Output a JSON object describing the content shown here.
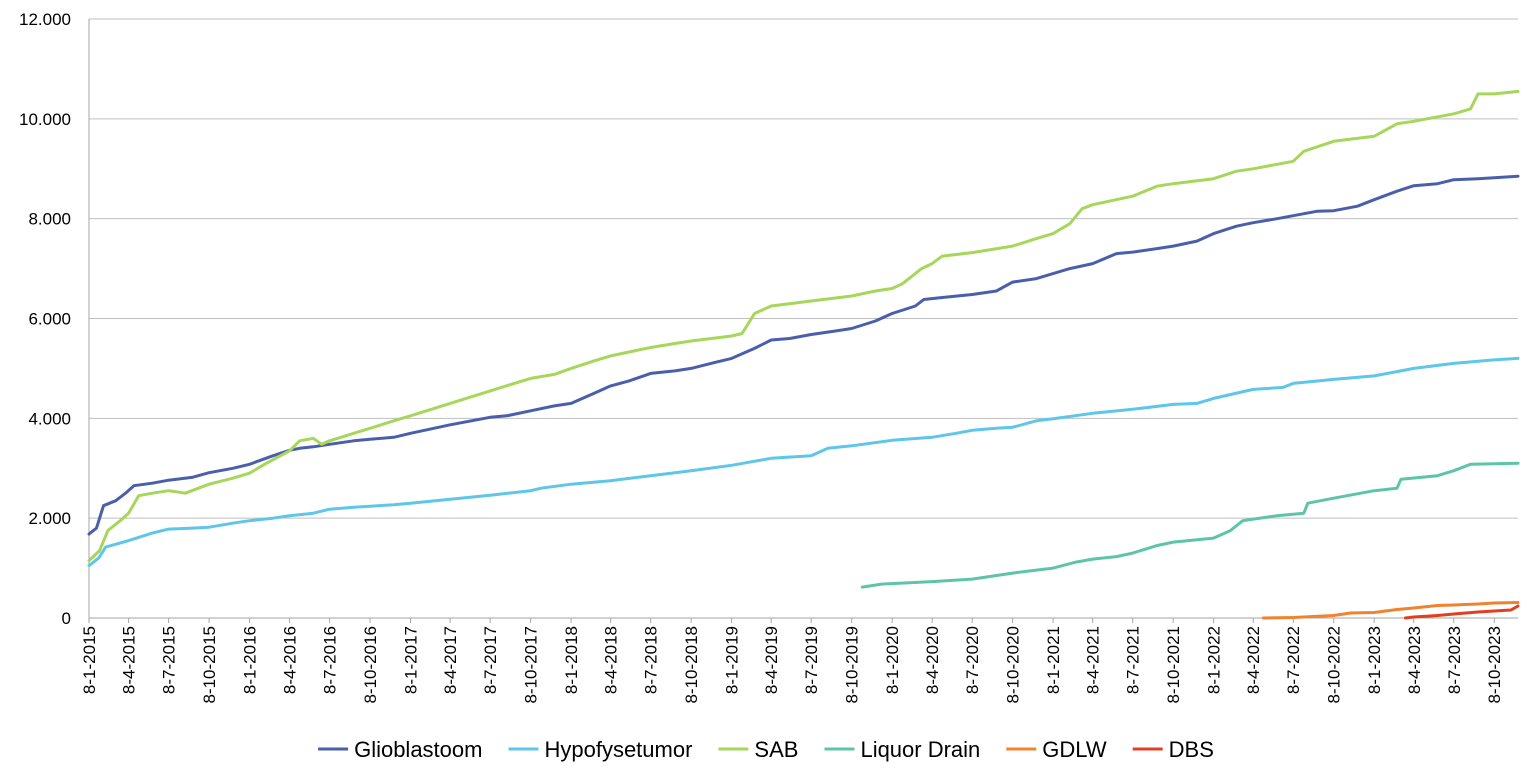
{
  "chart_data": {
    "type": "line",
    "title": "",
    "xlabel": "",
    "ylabel": "",
    "ylim": [
      0,
      12000
    ],
    "yticks": [
      "0",
      "2.000",
      "4.000",
      "6.000",
      "8.000",
      "10.000",
      "12.000"
    ],
    "x_tick_labels": [
      "8-1-2015",
      "8-4-2015",
      "8-7-2015",
      "8-10-2015",
      "8-1-2016",
      "8-4-2016",
      "8-7-2016",
      "8-10-2016",
      "8-1-2017",
      "8-4-2017",
      "8-7-2017",
      "8-10-2017",
      "8-1-2018",
      "8-4-2018",
      "8-7-2018",
      "8-10-2018",
      "8-1-2019",
      "8-4-2019",
      "8-7-2019",
      "8-10-2019",
      "8-1-2020",
      "8-4-2020",
      "8-7-2020",
      "8-10-2020",
      "8-1-2021",
      "8-4-2021",
      "8-7-2021",
      "8-10-2021",
      "8-1-2022",
      "8-4-2022",
      "8-7-2022",
      "8-10-2022",
      "8-1-2023",
      "8-4-2023",
      "8-7-2023",
      "8-10-2023"
    ],
    "x_range": [
      "2015-01-08",
      "2023-12-01"
    ],
    "grid": "horizontal",
    "legend_position": "bottom",
    "series": [
      {
        "name": "Glioblastoom",
        "color": "#4a5fac",
        "points": [
          [
            "2015-01-08",
            1680
          ],
          [
            "2015-01-25",
            1800
          ],
          [
            "2015-02-10",
            2250
          ],
          [
            "2015-03-10",
            2350
          ],
          [
            "2015-04-01",
            2500
          ],
          [
            "2015-04-20",
            2650
          ],
          [
            "2015-06-01",
            2700
          ],
          [
            "2015-07-08",
            2760
          ],
          [
            "2015-09-01",
            2820
          ],
          [
            "2015-10-08",
            2910
          ],
          [
            "2015-12-01",
            3000
          ],
          [
            "2016-01-08",
            3080
          ],
          [
            "2016-03-01",
            3250
          ],
          [
            "2016-04-08",
            3360
          ],
          [
            "2016-05-01",
            3400
          ],
          [
            "2016-06-01",
            3430
          ],
          [
            "2016-07-08",
            3480
          ],
          [
            "2016-09-01",
            3550
          ],
          [
            "2016-10-08",
            3580
          ],
          [
            "2016-12-01",
            3620
          ],
          [
            "2017-01-08",
            3700
          ],
          [
            "2017-04-08",
            3870
          ],
          [
            "2017-07-08",
            4020
          ],
          [
            "2017-08-15",
            4050
          ],
          [
            "2017-10-08",
            4150
          ],
          [
            "2017-12-01",
            4250
          ],
          [
            "2018-01-08",
            4300
          ],
          [
            "2018-03-01",
            4500
          ],
          [
            "2018-04-08",
            4650
          ],
          [
            "2018-05-20",
            4750
          ],
          [
            "2018-07-08",
            4900
          ],
          [
            "2018-09-01",
            4950
          ],
          [
            "2018-10-08",
            5000
          ],
          [
            "2018-12-01",
            5120
          ],
          [
            "2019-01-08",
            5200
          ],
          [
            "2019-03-01",
            5400
          ],
          [
            "2019-04-08",
            5570
          ],
          [
            "2019-05-20",
            5600
          ],
          [
            "2019-07-08",
            5680
          ],
          [
            "2019-09-01",
            5750
          ],
          [
            "2019-10-08",
            5800
          ],
          [
            "2019-12-01",
            5950
          ],
          [
            "2020-01-08",
            6100
          ],
          [
            "2020-03-01",
            6250
          ],
          [
            "2020-03-20",
            6380
          ],
          [
            "2020-05-01",
            6420
          ],
          [
            "2020-07-08",
            6480
          ],
          [
            "2020-09-01",
            6550
          ],
          [
            "2020-10-08",
            6730
          ],
          [
            "2020-12-01",
            6800
          ],
          [
            "2021-01-08",
            6900
          ],
          [
            "2021-02-15",
            7000
          ],
          [
            "2021-04-08",
            7100
          ],
          [
            "2021-06-01",
            7300
          ],
          [
            "2021-07-08",
            7330
          ],
          [
            "2021-09-01",
            7400
          ],
          [
            "2021-10-08",
            7450
          ],
          [
            "2021-12-01",
            7550
          ],
          [
            "2022-01-08",
            7700
          ],
          [
            "2022-03-01",
            7850
          ],
          [
            "2022-04-08",
            7920
          ],
          [
            "2022-06-01",
            8000
          ],
          [
            "2022-07-08",
            8060
          ],
          [
            "2022-09-01",
            8150
          ],
          [
            "2022-10-08",
            8160
          ],
          [
            "2022-12-01",
            8250
          ],
          [
            "2023-01-08",
            8380
          ],
          [
            "2023-03-01",
            8550
          ],
          [
            "2023-04-08",
            8660
          ],
          [
            "2023-06-01",
            8700
          ],
          [
            "2023-07-08",
            8780
          ],
          [
            "2023-09-01",
            8800
          ],
          [
            "2023-10-08",
            8820
          ],
          [
            "2023-12-01",
            8850
          ]
        ]
      },
      {
        "name": "Hypofysetumor",
        "color": "#5ec6e8",
        "points": [
          [
            "2015-01-08",
            1050
          ],
          [
            "2015-01-30",
            1200
          ],
          [
            "2015-02-15",
            1420
          ],
          [
            "2015-04-08",
            1550
          ],
          [
            "2015-06-01",
            1700
          ],
          [
            "2015-07-08",
            1780
          ],
          [
            "2015-09-01",
            1800
          ],
          [
            "2015-10-08",
            1820
          ],
          [
            "2015-12-01",
            1900
          ],
          [
            "2016-01-08",
            1950
          ],
          [
            "2016-03-01",
            2000
          ],
          [
            "2016-04-08",
            2050
          ],
          [
            "2016-06-01",
            2100
          ],
          [
            "2016-07-08",
            2180
          ],
          [
            "2016-09-01",
            2220
          ],
          [
            "2016-10-08",
            2240
          ],
          [
            "2016-12-01",
            2270
          ],
          [
            "2017-01-08",
            2300
          ],
          [
            "2017-07-08",
            2460
          ],
          [
            "2017-10-08",
            2550
          ],
          [
            "2017-11-01",
            2600
          ],
          [
            "2018-01-08",
            2680
          ],
          [
            "2018-04-08",
            2750
          ],
          [
            "2018-07-08",
            2850
          ],
          [
            "2018-10-08",
            2950
          ],
          [
            "2019-01-08",
            3060
          ],
          [
            "2019-04-08",
            3200
          ],
          [
            "2019-07-08",
            3250
          ],
          [
            "2019-08-15",
            3400
          ],
          [
            "2019-10-08",
            3450
          ],
          [
            "2020-01-08",
            3560
          ],
          [
            "2020-04-08",
            3620
          ],
          [
            "2020-06-01",
            3700
          ],
          [
            "2020-07-08",
            3760
          ],
          [
            "2020-09-01",
            3800
          ],
          [
            "2020-10-08",
            3820
          ],
          [
            "2020-12-01",
            3950
          ],
          [
            "2021-01-08",
            3990
          ],
          [
            "2021-04-08",
            4100
          ],
          [
            "2021-07-08",
            4180
          ],
          [
            "2021-10-08",
            4280
          ],
          [
            "2021-12-01",
            4300
          ],
          [
            "2022-01-08",
            4400
          ],
          [
            "2022-04-08",
            4580
          ],
          [
            "2022-06-15",
            4620
          ],
          [
            "2022-07-08",
            4700
          ],
          [
            "2022-10-08",
            4780
          ],
          [
            "2023-01-08",
            4850
          ],
          [
            "2023-04-08",
            5000
          ],
          [
            "2023-07-08",
            5100
          ],
          [
            "2023-10-08",
            5170
          ],
          [
            "2023-12-01",
            5200
          ]
        ]
      },
      {
        "name": "SAB",
        "color": "#a6d65a",
        "points": [
          [
            "2015-01-08",
            1150
          ],
          [
            "2015-02-01",
            1350
          ],
          [
            "2015-02-20",
            1750
          ],
          [
            "2015-03-20",
            1950
          ],
          [
            "2015-04-08",
            2100
          ],
          [
            "2015-05-01",
            2450
          ],
          [
            "2015-06-01",
            2500
          ],
          [
            "2015-07-08",
            2550
          ],
          [
            "2015-08-15",
            2500
          ],
          [
            "2015-10-08",
            2680
          ],
          [
            "2015-12-01",
            2800
          ],
          [
            "2016-01-08",
            2900
          ],
          [
            "2016-02-15",
            3100
          ],
          [
            "2016-04-08",
            3350
          ],
          [
            "2016-05-01",
            3550
          ],
          [
            "2016-06-01",
            3600
          ],
          [
            "2016-06-20",
            3480
          ],
          [
            "2016-07-08",
            3550
          ],
          [
            "2016-09-01",
            3700
          ],
          [
            "2016-10-08",
            3800
          ],
          [
            "2016-12-01",
            3950
          ],
          [
            "2017-01-08",
            4050
          ],
          [
            "2017-04-08",
            4300
          ],
          [
            "2017-07-08",
            4550
          ],
          [
            "2017-10-08",
            4800
          ],
          [
            "2017-12-01",
            4880
          ],
          [
            "2018-01-08",
            5000
          ],
          [
            "2018-03-01",
            5150
          ],
          [
            "2018-04-08",
            5250
          ],
          [
            "2018-06-01",
            5350
          ],
          [
            "2018-07-08",
            5420
          ],
          [
            "2018-09-01",
            5500
          ],
          [
            "2018-10-08",
            5550
          ],
          [
            "2019-01-08",
            5650
          ],
          [
            "2019-02-01",
            5700
          ],
          [
            "2019-03-01",
            6100
          ],
          [
            "2019-04-08",
            6250
          ],
          [
            "2019-07-08",
            6350
          ],
          [
            "2019-10-08",
            6450
          ],
          [
            "2019-12-01",
            6550
          ],
          [
            "2020-01-08",
            6600
          ],
          [
            "2020-02-01",
            6700
          ],
          [
            "2020-03-15",
            7000
          ],
          [
            "2020-04-08",
            7100
          ],
          [
            "2020-05-01",
            7250
          ],
          [
            "2020-07-08",
            7320
          ],
          [
            "2020-10-08",
            7450
          ],
          [
            "2020-12-01",
            7600
          ],
          [
            "2021-01-08",
            7700
          ],
          [
            "2021-02-15",
            7900
          ],
          [
            "2021-03-15",
            8200
          ],
          [
            "2021-04-08",
            8280
          ],
          [
            "2021-07-08",
            8450
          ],
          [
            "2021-09-01",
            8650
          ],
          [
            "2021-10-08",
            8700
          ],
          [
            "2022-01-08",
            8800
          ],
          [
            "2022-03-01",
            8950
          ],
          [
            "2022-04-08",
            9000
          ],
          [
            "2022-07-08",
            9150
          ],
          [
            "2022-08-01",
            9350
          ],
          [
            "2022-10-08",
            9550
          ],
          [
            "2023-01-08",
            9650
          ],
          [
            "2023-03-01",
            9900
          ],
          [
            "2023-04-08",
            9950
          ],
          [
            "2023-07-08",
            10100
          ],
          [
            "2023-08-15",
            10200
          ],
          [
            "2023-09-01",
            10500
          ],
          [
            "2023-10-08",
            10500
          ],
          [
            "2023-12-01",
            10550
          ]
        ]
      },
      {
        "name": "Liquor Drain",
        "color": "#5ec4a8",
        "points": [
          [
            "2019-11-01",
            620
          ],
          [
            "2019-12-15",
            680
          ],
          [
            "2020-04-08",
            730
          ],
          [
            "2020-07-08",
            780
          ],
          [
            "2020-10-08",
            900
          ],
          [
            "2020-12-01",
            960
          ],
          [
            "2021-01-08",
            1000
          ],
          [
            "2021-03-01",
            1120
          ],
          [
            "2021-04-08",
            1180
          ],
          [
            "2021-06-01",
            1230
          ],
          [
            "2021-07-08",
            1300
          ],
          [
            "2021-09-01",
            1450
          ],
          [
            "2021-10-08",
            1520
          ],
          [
            "2022-01-08",
            1600
          ],
          [
            "2022-02-15",
            1750
          ],
          [
            "2022-03-15",
            1950
          ],
          [
            "2022-06-01",
            2050
          ],
          [
            "2022-08-01",
            2100
          ],
          [
            "2022-08-10",
            2300
          ],
          [
            "2022-10-08",
            2400
          ],
          [
            "2023-01-08",
            2550
          ],
          [
            "2023-03-01",
            2600
          ],
          [
            "2023-03-10",
            2780
          ],
          [
            "2023-06-01",
            2850
          ],
          [
            "2023-07-08",
            2950
          ],
          [
            "2023-08-15",
            3080
          ],
          [
            "2023-12-01",
            3100
          ]
        ]
      },
      {
        "name": "GDLW",
        "color": "#f08330",
        "points": [
          [
            "2022-05-01",
            0
          ],
          [
            "2022-07-08",
            10
          ],
          [
            "2022-10-08",
            50
          ],
          [
            "2022-11-15",
            100
          ],
          [
            "2023-01-08",
            110
          ],
          [
            "2023-03-01",
            170
          ],
          [
            "2023-04-08",
            200
          ],
          [
            "2023-06-01",
            250
          ],
          [
            "2023-07-08",
            260
          ],
          [
            "2023-09-01",
            280
          ],
          [
            "2023-10-08",
            300
          ],
          [
            "2023-12-01",
            310
          ]
        ]
      },
      {
        "name": "DBS",
        "color": "#e04020",
        "points": [
          [
            "2023-03-20",
            0
          ],
          [
            "2023-04-08",
            20
          ],
          [
            "2023-06-01",
            50
          ],
          [
            "2023-07-08",
            80
          ],
          [
            "2023-09-01",
            120
          ],
          [
            "2023-10-08",
            140
          ],
          [
            "2023-11-15",
            160
          ],
          [
            "2023-12-01",
            240
          ]
        ]
      }
    ]
  }
}
